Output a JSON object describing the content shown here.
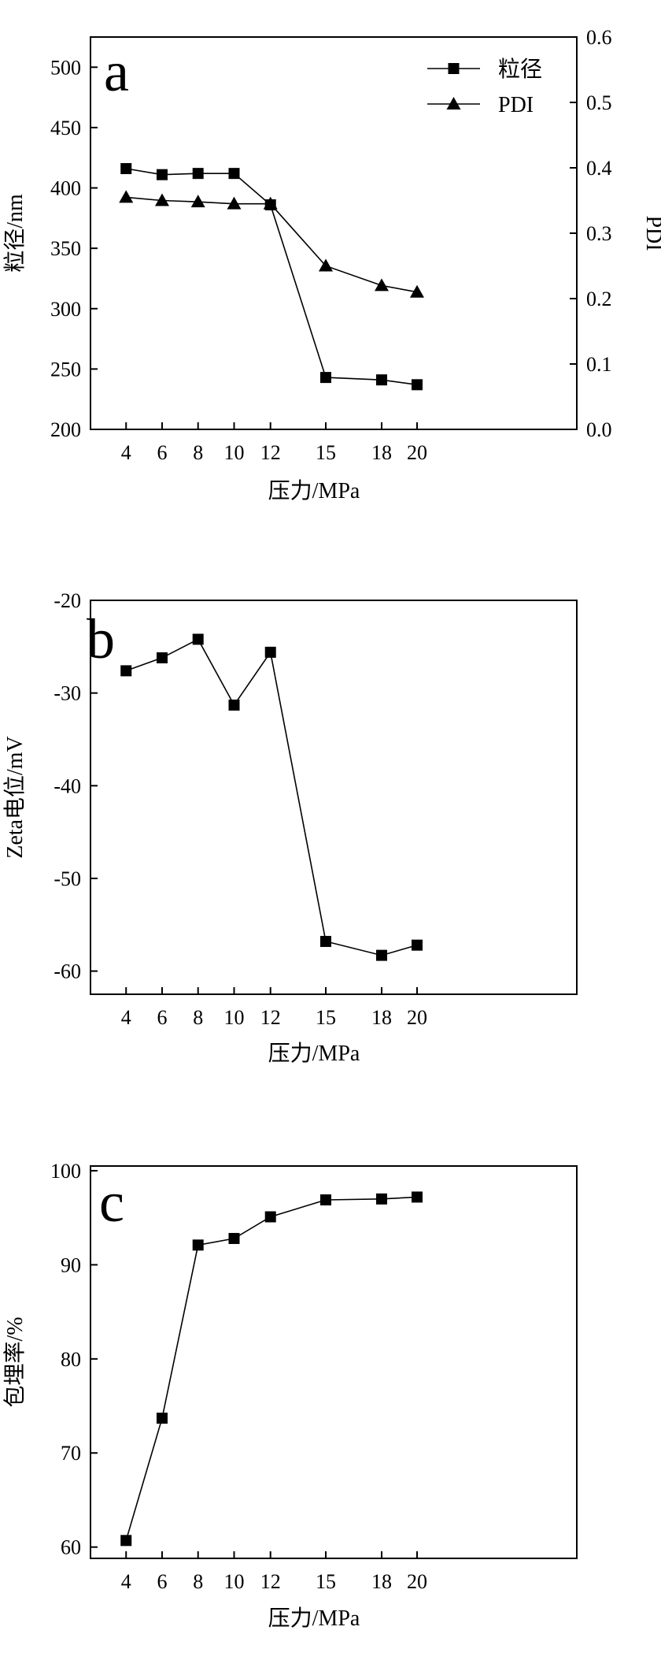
{
  "chart_data": [
    {
      "type": "line",
      "panel_letter": "a",
      "xlabel": "压力/MPa",
      "ylabel": "粒径/nm",
      "ylabel_right": "PDI",
      "categories": [
        "4",
        "6",
        "8",
        "10",
        "12",
        "15",
        "18",
        "20"
      ],
      "ylim": [
        200,
        525
      ],
      "yticks": [
        200,
        250,
        300,
        350,
        400,
        450,
        500
      ],
      "ylim_right": [
        0.0,
        0.6
      ],
      "yticks_right": [
        "0.0",
        "0.1",
        "0.2",
        "0.3",
        "0.4",
        "0.5",
        "0.6"
      ],
      "legend_position": "top-right",
      "series": [
        {
          "name": "粒径",
          "marker": "square",
          "axis": "left",
          "values": [
            416,
            411,
            412,
            412,
            386,
            243,
            241,
            237
          ]
        },
        {
          "name": "PDI",
          "marker": "triangle",
          "axis": "right",
          "values": [
            0.355,
            0.35,
            0.348,
            0.345,
            0.345,
            0.25,
            0.22,
            0.21
          ]
        }
      ]
    },
    {
      "type": "line",
      "panel_letter": "b",
      "xlabel": "压力/MPa",
      "ylabel": "Zeta电位/mV",
      "categories": [
        "4",
        "6",
        "8",
        "10",
        "12",
        "15",
        "18",
        "20"
      ],
      "ylim": [
        -62.5,
        -20
      ],
      "yticks": [
        -60,
        -50,
        -40,
        -30,
        -20
      ],
      "series": [
        {
          "marker": "square",
          "values": [
            -27.6,
            -26.2,
            -24.2,
            -31.3,
            -25.6,
            -56.8,
            -58.3,
            -57.2
          ]
        }
      ]
    },
    {
      "type": "line",
      "panel_letter": "c",
      "xlabel": "压力/MPa",
      "ylabel": "包埋率/%",
      "categories": [
        "4",
        "6",
        "8",
        "10",
        "12",
        "15",
        "18",
        "20"
      ],
      "ylim": [
        58.8,
        100.5
      ],
      "yticks": [
        60,
        70,
        80,
        90,
        100
      ],
      "series": [
        {
          "marker": "square",
          "values": [
            60.7,
            73.7,
            92.1,
            92.8,
            95.1,
            96.9,
            97.0,
            97.2
          ]
        }
      ]
    }
  ],
  "colors": {
    "ink": "#000000",
    "background": "#ffffff"
  }
}
